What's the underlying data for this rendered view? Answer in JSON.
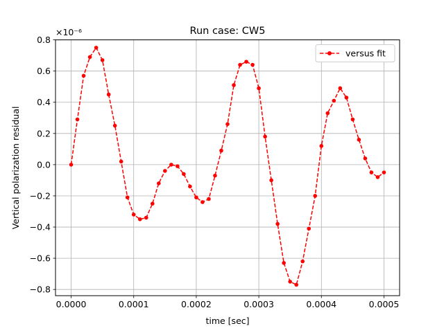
{
  "chart_data": {
    "type": "line",
    "title": "Run case: CW5",
    "xlabel": "time [sec]",
    "ylabel": "Vertical polarization residual",
    "y_offset_label": "×10⁻⁶",
    "xlim": [
      -2.5e-05,
      0.000525
    ],
    "ylim": [
      -0.84,
      0.8
    ],
    "grid": true,
    "legend_position": "top-right",
    "x_ticks": [
      0.0,
      0.0001,
      0.0002,
      0.0003,
      0.0004,
      0.0005
    ],
    "x_tick_labels": [
      "0.0000",
      "0.0001",
      "0.0002",
      "0.0003",
      "0.0004",
      "0.0005"
    ],
    "y_ticks": [
      -0.8,
      -0.6,
      -0.4,
      -0.2,
      0.0,
      0.2,
      0.4,
      0.6,
      0.8
    ],
    "y_tick_labels": [
      "−0.8",
      "−0.6",
      "−0.4",
      "−0.2",
      "0.0",
      "0.2",
      "0.4",
      "0.6",
      "0.8"
    ],
    "series": [
      {
        "name": "versus fit",
        "color": "#ff0000",
        "line_style": "dashed",
        "marker": "circle",
        "x": [
          0.0,
          1e-05,
          2e-05,
          3e-05,
          4e-05,
          5e-05,
          6e-05,
          7e-05,
          8e-05,
          9e-05,
          0.0001,
          0.00011,
          0.00012,
          0.00013,
          0.00014,
          0.00015,
          0.00016,
          0.00017,
          0.00018,
          0.00019,
          0.0002,
          0.00021,
          0.00022,
          0.00023,
          0.00024,
          0.00025,
          0.00026,
          0.00027,
          0.00028,
          0.00029,
          0.0003,
          0.00031,
          0.00032,
          0.00033,
          0.00034,
          0.00035,
          0.00036,
          0.00037,
          0.00038,
          0.00039,
          0.0004,
          0.00041,
          0.00042,
          0.00043,
          0.00044,
          0.00045,
          0.00046,
          0.00047,
          0.00048,
          0.00049,
          0.0005
        ],
        "values": [
          0.0,
          0.29,
          0.57,
          0.69,
          0.75,
          0.67,
          0.45,
          0.25,
          0.02,
          -0.21,
          -0.32,
          -0.35,
          -0.34,
          -0.25,
          -0.12,
          -0.04,
          0.0,
          -0.01,
          -0.06,
          -0.14,
          -0.21,
          -0.24,
          -0.22,
          -0.07,
          0.09,
          0.26,
          0.51,
          0.64,
          0.66,
          0.64,
          0.49,
          0.18,
          -0.1,
          -0.38,
          -0.63,
          -0.75,
          -0.77,
          -0.62,
          -0.41,
          -0.2,
          0.12,
          0.33,
          0.41,
          0.49,
          0.43,
          0.29,
          0.16,
          0.04,
          -0.05,
          -0.08,
          -0.05
        ]
      }
    ]
  }
}
